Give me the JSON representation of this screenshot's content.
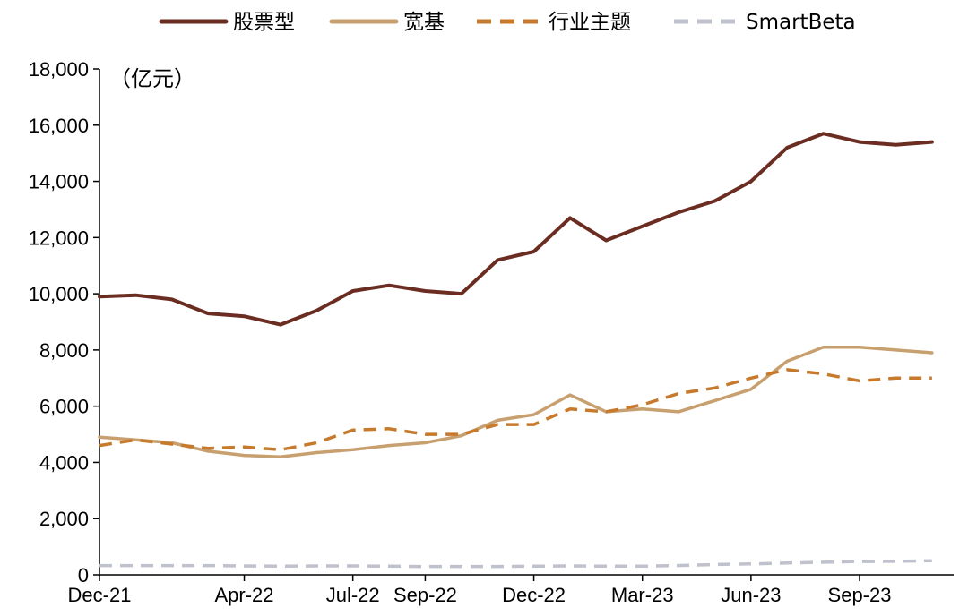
{
  "chart_data": {
    "type": "line",
    "unit_label": "（亿元）",
    "ylim": [
      0,
      18000
    ],
    "yticks": [
      0,
      2000,
      4000,
      6000,
      8000,
      10000,
      12000,
      14000,
      16000,
      18000
    ],
    "ytick_labels": [
      "0",
      "2,000",
      "4,000",
      "6,000",
      "8,000",
      "10,000",
      "12,000",
      "14,000",
      "16,000",
      "18,000"
    ],
    "xticks": [
      "2021-12",
      "2022-04",
      "2022-07",
      "2022-09",
      "2022-12",
      "2023-03",
      "2023-06",
      "2023-09"
    ],
    "xtick_labels": [
      "Dec-21",
      "Apr-22",
      "Jul-22",
      "Sep-22",
      "Dec-22",
      "Mar-23",
      "Jun-23",
      "Sep-23"
    ],
    "x": [
      "2021-12",
      "2022-01",
      "2022-02",
      "2022-03",
      "2022-04",
      "2022-05",
      "2022-06",
      "2022-07",
      "2022-08",
      "2022-09",
      "2022-10",
      "2022-11",
      "2022-12",
      "2023-01",
      "2023-02",
      "2023-03",
      "2023-04",
      "2023-05",
      "2023-06",
      "2023-07",
      "2023-08",
      "2023-09",
      "2023-10",
      "2023-11"
    ],
    "grid": false,
    "legend_position": "top",
    "series": [
      {
        "name": "股票型",
        "color": "#6b2d22",
        "style": "solid",
        "values": [
          9900,
          9950,
          9800,
          9300,
          9200,
          8900,
          9400,
          10100,
          10300,
          10100,
          10000,
          11200,
          11500,
          12700,
          11900,
          12400,
          12900,
          13300,
          14000,
          15200,
          15700,
          15400,
          15300,
          15400
        ]
      },
      {
        "name": "宽基",
        "color": "#c8a070",
        "style": "solid",
        "values": [
          4900,
          4800,
          4700,
          4400,
          4250,
          4200,
          4350,
          4450,
          4600,
          4700,
          4950,
          5500,
          5700,
          6400,
          5800,
          5900,
          5800,
          6200,
          6600,
          7600,
          8100,
          8100,
          8000,
          7900
        ]
      },
      {
        "name": "行业主题",
        "color": "#c77a2b",
        "style": "dashed",
        "values": [
          4600,
          4800,
          4650,
          4500,
          4550,
          4450,
          4700,
          5150,
          5200,
          5000,
          5000,
          5350,
          5350,
          5900,
          5800,
          6050,
          6450,
          6650,
          7000,
          7300,
          7150,
          6900,
          7000,
          7000
        ]
      },
      {
        "name": "SmartBeta",
        "color": "#bfc1cc",
        "style": "dashed",
        "values": [
          330,
          330,
          330,
          330,
          320,
          310,
          320,
          320,
          310,
          300,
          300,
          300,
          310,
          320,
          310,
          310,
          330,
          370,
          390,
          420,
          450,
          470,
          480,
          500
        ]
      }
    ]
  }
}
